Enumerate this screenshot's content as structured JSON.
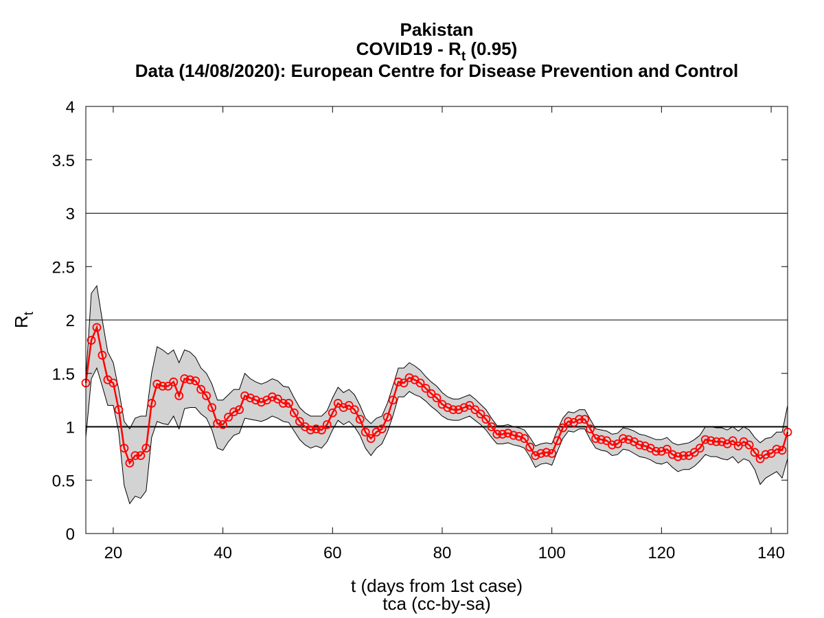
{
  "chart_data": {
    "type": "line-band",
    "title_lines": [
      "Pakistan",
      "Data (14/08/2020): European Centre for Disease Prevention and Control"
    ],
    "title_rt": {
      "prefix": "COVID19 - R",
      "sub": "t",
      "suffix": " (0.95)"
    },
    "y_label": {
      "main": "R",
      "sub": "t"
    },
    "x_label": "t (days from 1st case)",
    "footer": "tca (cc-by-sa)",
    "xlim": [
      15,
      143
    ],
    "ylim": [
      0,
      4
    ],
    "xticks": [
      20,
      40,
      60,
      80,
      100,
      120,
      140
    ],
    "yticks": [
      0,
      0.5,
      1,
      1.5,
      2,
      2.5,
      3,
      3.5,
      4
    ],
    "reference_lines": [
      1,
      2,
      3
    ],
    "color": "#ff0000",
    "band_color": "#d3d3d3",
    "x": [
      15,
      16,
      17,
      18,
      19,
      20,
      21,
      22,
      23,
      24,
      25,
      26,
      27,
      28,
      29,
      30,
      31,
      32,
      33,
      34,
      35,
      36,
      37,
      38,
      39,
      40,
      41,
      42,
      43,
      44,
      45,
      46,
      47,
      48,
      49,
      50,
      51,
      52,
      53,
      54,
      55,
      56,
      57,
      58,
      59,
      60,
      61,
      62,
      63,
      64,
      65,
      66,
      67,
      68,
      69,
      70,
      71,
      72,
      73,
      74,
      75,
      76,
      77,
      78,
      79,
      80,
      81,
      82,
      83,
      84,
      85,
      86,
      87,
      88,
      89,
      90,
      91,
      92,
      93,
      94,
      95,
      96,
      97,
      98,
      99,
      100,
      101,
      102,
      103,
      104,
      105,
      106,
      107,
      108,
      109,
      110,
      111,
      112,
      113,
      114,
      115,
      116,
      117,
      118,
      119,
      120,
      121,
      122,
      123,
      124,
      125,
      126,
      127,
      128,
      129,
      130,
      131,
      132,
      133,
      134,
      135,
      136,
      137,
      138,
      139,
      140,
      141,
      142,
      143
    ],
    "values": [
      1.41,
      1.81,
      1.93,
      1.67,
      1.44,
      1.41,
      1.16,
      0.8,
      0.66,
      0.73,
      0.73,
      0.8,
      1.22,
      1.4,
      1.38,
      1.38,
      1.42,
      1.29,
      1.45,
      1.44,
      1.43,
      1.35,
      1.29,
      1.18,
      1.03,
      1.02,
      1.09,
      1.14,
      1.16,
      1.29,
      1.27,
      1.25,
      1.23,
      1.25,
      1.28,
      1.26,
      1.22,
      1.22,
      1.13,
      1.05,
      1.0,
      0.97,
      0.98,
      0.97,
      1.02,
      1.13,
      1.22,
      1.18,
      1.2,
      1.16,
      1.07,
      0.95,
      0.89,
      0.95,
      0.98,
      1.09,
      1.25,
      1.42,
      1.41,
      1.46,
      1.44,
      1.41,
      1.36,
      1.31,
      1.27,
      1.21,
      1.18,
      1.16,
      1.16,
      1.18,
      1.2,
      1.16,
      1.12,
      1.07,
      1.0,
      0.93,
      0.93,
      0.94,
      0.92,
      0.91,
      0.89,
      0.81,
      0.73,
      0.75,
      0.76,
      0.75,
      0.87,
      0.99,
      1.05,
      1.04,
      1.07,
      1.07,
      0.98,
      0.89,
      0.88,
      0.87,
      0.83,
      0.84,
      0.89,
      0.88,
      0.86,
      0.83,
      0.82,
      0.8,
      0.77,
      0.77,
      0.79,
      0.74,
      0.72,
      0.73,
      0.73,
      0.76,
      0.8,
      0.88,
      0.87,
      0.86,
      0.86,
      0.84,
      0.87,
      0.82,
      0.86,
      0.83,
      0.76,
      0.7,
      0.74,
      0.75,
      0.79,
      0.78,
      0.95
    ],
    "upper": [
      1.45,
      2.25,
      2.32,
      2.0,
      1.7,
      1.6,
      1.35,
      1.05,
      0.98,
      1.08,
      1.1,
      1.1,
      1.5,
      1.75,
      1.72,
      1.68,
      1.72,
      1.6,
      1.72,
      1.7,
      1.65,
      1.55,
      1.5,
      1.4,
      1.25,
      1.25,
      1.3,
      1.35,
      1.35,
      1.5,
      1.45,
      1.42,
      1.4,
      1.42,
      1.45,
      1.43,
      1.38,
      1.37,
      1.27,
      1.18,
      1.13,
      1.1,
      1.1,
      1.1,
      1.15,
      1.27,
      1.37,
      1.32,
      1.35,
      1.3,
      1.2,
      1.08,
      1.03,
      1.08,
      1.1,
      1.22,
      1.38,
      1.55,
      1.55,
      1.6,
      1.57,
      1.53,
      1.47,
      1.42,
      1.38,
      1.32,
      1.28,
      1.26,
      1.26,
      1.28,
      1.3,
      1.26,
      1.21,
      1.16,
      1.08,
      1.01,
      1.01,
      1.02,
      1.0,
      0.99,
      0.97,
      0.9,
      0.82,
      0.84,
      0.85,
      0.84,
      0.97,
      1.08,
      1.14,
      1.13,
      1.16,
      1.16,
      1.07,
      0.98,
      0.97,
      0.96,
      0.93,
      0.94,
      0.99,
      0.98,
      0.96,
      0.93,
      0.92,
      0.9,
      0.88,
      0.88,
      0.9,
      0.85,
      0.83,
      0.84,
      0.85,
      0.88,
      0.92,
      1.0,
      1.0,
      0.99,
      0.99,
      0.97,
      1.0,
      0.96,
      1.0,
      0.97,
      0.9,
      0.85,
      0.89,
      0.9,
      0.95,
      0.95,
      1.2
    ],
    "lower": [
      0.9,
      1.45,
      1.55,
      1.38,
      1.2,
      1.2,
      0.95,
      0.45,
      0.28,
      0.35,
      0.33,
      0.4,
      0.9,
      1.05,
      1.03,
      1.02,
      1.1,
      0.98,
      1.17,
      1.18,
      1.18,
      1.12,
      1.08,
      0.97,
      0.8,
      0.78,
      0.86,
      0.92,
      0.94,
      1.08,
      1.07,
      1.06,
      1.05,
      1.07,
      1.1,
      1.08,
      1.05,
      1.04,
      0.96,
      0.88,
      0.83,
      0.8,
      0.82,
      0.8,
      0.86,
      0.97,
      1.06,
      1.02,
      1.05,
      1.0,
      0.92,
      0.8,
      0.73,
      0.8,
      0.84,
      0.95,
      1.1,
      1.28,
      1.28,
      1.33,
      1.3,
      1.28,
      1.24,
      1.19,
      1.15,
      1.1,
      1.07,
      1.06,
      1.06,
      1.08,
      1.1,
      1.06,
      1.02,
      0.97,
      0.9,
      0.84,
      0.84,
      0.85,
      0.83,
      0.82,
      0.8,
      0.72,
      0.62,
      0.65,
      0.66,
      0.64,
      0.77,
      0.89,
      0.96,
      0.95,
      0.98,
      0.98,
      0.88,
      0.8,
      0.78,
      0.77,
      0.73,
      0.74,
      0.79,
      0.78,
      0.75,
      0.72,
      0.71,
      0.69,
      0.66,
      0.65,
      0.67,
      0.62,
      0.58,
      0.6,
      0.6,
      0.63,
      0.68,
      0.74,
      0.72,
      0.72,
      0.7,
      0.69,
      0.72,
      0.66,
      0.7,
      0.68,
      0.6,
      0.46,
      0.52,
      0.55,
      0.58,
      0.52,
      0.7
    ]
  }
}
